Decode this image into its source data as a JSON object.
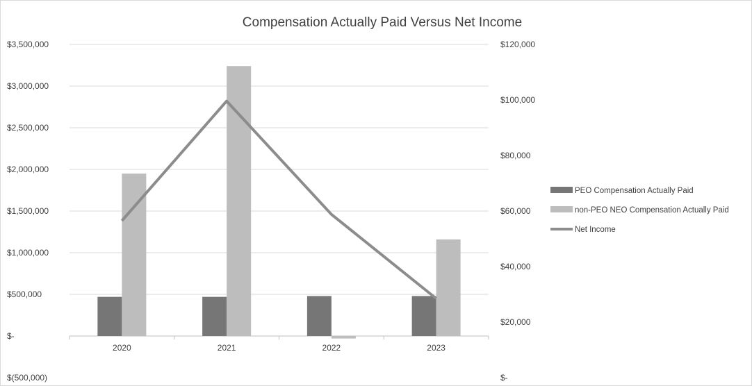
{
  "chart_data": {
    "type": "bar",
    "title": "Compensation Actually Paid Versus Net Income",
    "categories": [
      "2020",
      "2021",
      "2022",
      "2023"
    ],
    "series": [
      {
        "name": "PEO Compensation Actually Paid",
        "type": "bar",
        "axis": "left",
        "color": "#767676",
        "values": [
          470000,
          470000,
          480000,
          480000
        ]
      },
      {
        "name": "non-PEO NEO Compensation Actually Paid",
        "type": "bar",
        "axis": "left",
        "color": "#bdbdbd",
        "values": [
          1950000,
          3240000,
          -30000,
          1160000
        ]
      },
      {
        "name": "Net Income",
        "type": "line",
        "axis": "right",
        "color": "#8c8c8c",
        "values": [
          56500,
          99600,
          58800,
          28500
        ]
      }
    ],
    "y_left": {
      "ylim": [
        -500000,
        3500000
      ],
      "ticks": [
        3500000,
        3000000,
        2500000,
        2000000,
        1500000,
        1000000,
        500000,
        0,
        -500000
      ],
      "tick_labels": [
        "$3,500,000",
        "$3,000,000",
        "$2,500,000",
        "$2,000,000",
        "$1,500,000",
        "$1,000,000",
        "$500,000",
        "$-",
        "$(500,000)"
      ]
    },
    "y_right": {
      "ylim": [
        0,
        120000
      ],
      "ticks": [
        120000,
        100000,
        80000,
        60000,
        40000,
        20000,
        0
      ],
      "tick_labels": [
        "$120,000",
        "$100,000",
        "$80,000",
        "$60,000",
        "$40,000",
        "$20,000",
        "$-"
      ]
    },
    "grid": true,
    "legend_position": "right"
  }
}
